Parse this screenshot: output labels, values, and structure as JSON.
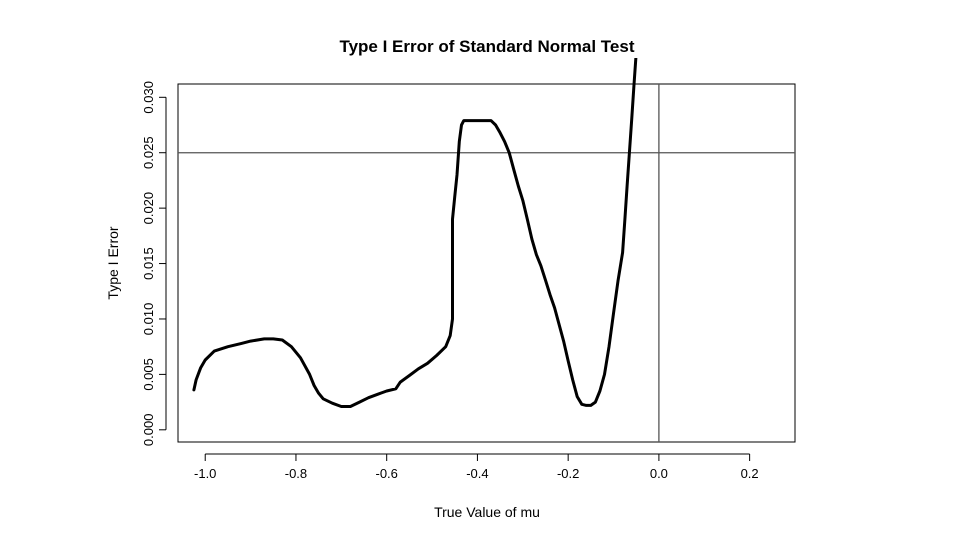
{
  "chart_data": {
    "type": "line",
    "title": "Type I Error of Standard Normal Test",
    "xlabel": "True Value of mu",
    "ylabel": "Type I Error",
    "xlim": [
      -1.06,
      0.3
    ],
    "ylim": [
      -0.0011,
      0.0312
    ],
    "xticks": [
      -1.0,
      -0.8,
      -0.6,
      -0.4,
      -0.2,
      0.0,
      0.2
    ],
    "xtick_labels": [
      "-1.0",
      "-0.8",
      "-0.6",
      "-0.4",
      "-0.2",
      "0.0",
      "0.2"
    ],
    "yticks": [
      0.0,
      0.005,
      0.01,
      0.015,
      0.02,
      0.025,
      0.03
    ],
    "ytick_labels": [
      "0.000",
      "0.005",
      "0.010",
      "0.015",
      "0.020",
      "0.025",
      "0.030"
    ],
    "grid": false,
    "reference_lines": {
      "horizontal": 0.025,
      "vertical": 0.0
    },
    "series": [
      {
        "x": [
          -1.025,
          -1.02,
          -1.01,
          -1.0,
          -0.98,
          -0.95,
          -0.92,
          -0.9,
          -0.87,
          -0.85,
          -0.83,
          -0.81,
          -0.79,
          -0.77,
          -0.76,
          -0.75,
          -0.74,
          -0.72,
          -0.7,
          -0.68,
          -0.66,
          -0.64,
          -0.62,
          -0.6,
          -0.58,
          -0.57,
          -0.55,
          -0.53,
          -0.51,
          -0.49,
          -0.47,
          -0.46,
          -0.455,
          -0.455,
          -0.45,
          -0.445,
          -0.44,
          -0.435,
          -0.43,
          -0.42,
          -0.41,
          -0.4,
          -0.39,
          -0.38,
          -0.37,
          -0.36,
          -0.35,
          -0.34,
          -0.33,
          -0.32,
          -0.31,
          -0.3,
          -0.29,
          -0.28,
          -0.27,
          -0.26,
          -0.25,
          -0.24,
          -0.23,
          -0.22,
          -0.21,
          -0.2,
          -0.19,
          -0.18,
          -0.17,
          -0.16,
          -0.15,
          -0.14,
          -0.13,
          -0.12,
          -0.11,
          -0.1,
          -0.09,
          -0.08,
          -0.075,
          -0.07,
          -0.065,
          -0.06,
          -0.055,
          -0.05
        ],
        "y": [
          0.0036,
          0.0045,
          0.0056,
          0.0063,
          0.0071,
          0.0075,
          0.0078,
          0.008,
          0.0082,
          0.0082,
          0.0081,
          0.0075,
          0.0065,
          0.005,
          0.004,
          0.0033,
          0.0028,
          0.0024,
          0.0021,
          0.0021,
          0.0025,
          0.0029,
          0.0032,
          0.0035,
          0.0037,
          0.0043,
          0.0049,
          0.0055,
          0.006,
          0.0067,
          0.0075,
          0.0085,
          0.01,
          0.019,
          0.021,
          0.023,
          0.026,
          0.0275,
          0.0279,
          0.0279,
          0.0279,
          0.0279,
          0.0279,
          0.0279,
          0.0279,
          0.0275,
          0.0268,
          0.026,
          0.025,
          0.0235,
          0.022,
          0.0207,
          0.019,
          0.0172,
          0.0158,
          0.0148,
          0.0135,
          0.0122,
          0.011,
          0.0095,
          0.008,
          0.0062,
          0.0045,
          0.003,
          0.0023,
          0.0022,
          0.0022,
          0.0025,
          0.0035,
          0.005,
          0.0075,
          0.0105,
          0.0135,
          0.016,
          0.019,
          0.022,
          0.025,
          0.028,
          0.031,
          0.034
        ]
      }
    ]
  }
}
